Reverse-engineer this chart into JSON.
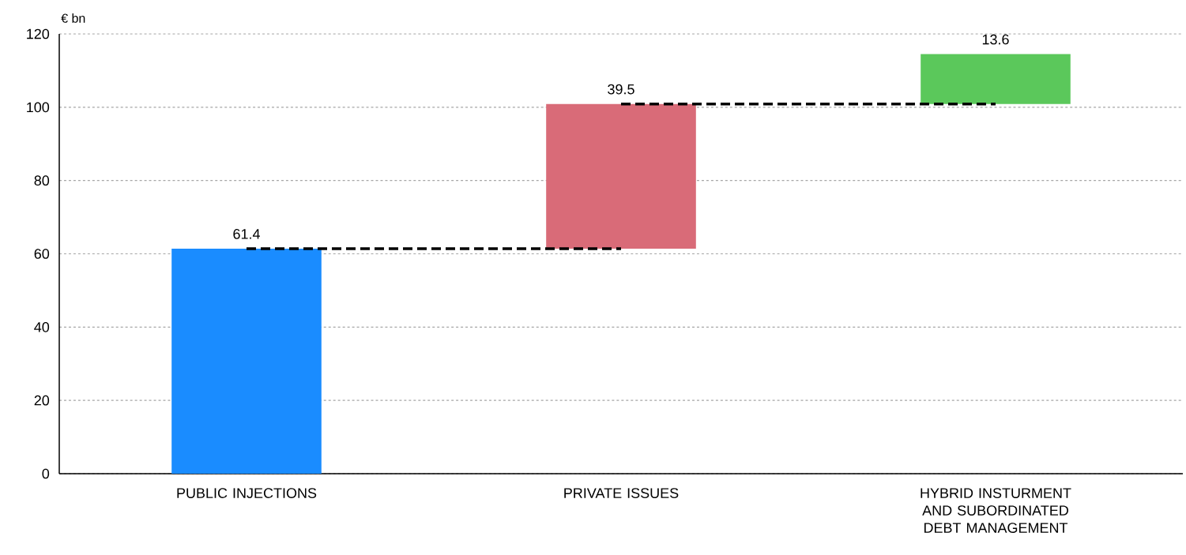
{
  "chart_data": {
    "type": "bar",
    "ylabel": "€ bn",
    "categories": [
      "PUBLIC INJECTIONS",
      "PRIVATE ISSUES",
      "HYBRID INSTURMENT AND SUBORDINATED DEBT MANAGEMENT"
    ],
    "values": [
      61.4,
      39.5,
      13.6
    ],
    "base": [
      0,
      61.4,
      100.9
    ],
    "colors": [
      "#1a8cff",
      "#d96b78",
      "#5bc85b"
    ],
    "value_labels": [
      "61.4",
      "39.5",
      "13.6"
    ],
    "series": [
      {
        "type": "line",
        "color": "#000000",
        "line_style": "dashed",
        "values": [
          61.4,
          61.4,
          null
        ]
      },
      {
        "type": "line",
        "color": "#000000",
        "line_style": "dashed",
        "values": [
          null,
          100.9,
          100.9
        ]
      }
    ],
    "ylim": [
      0,
      120
    ],
    "yticks": [
      0,
      20,
      40,
      60,
      80,
      100,
      120
    ],
    "grid": "y"
  }
}
